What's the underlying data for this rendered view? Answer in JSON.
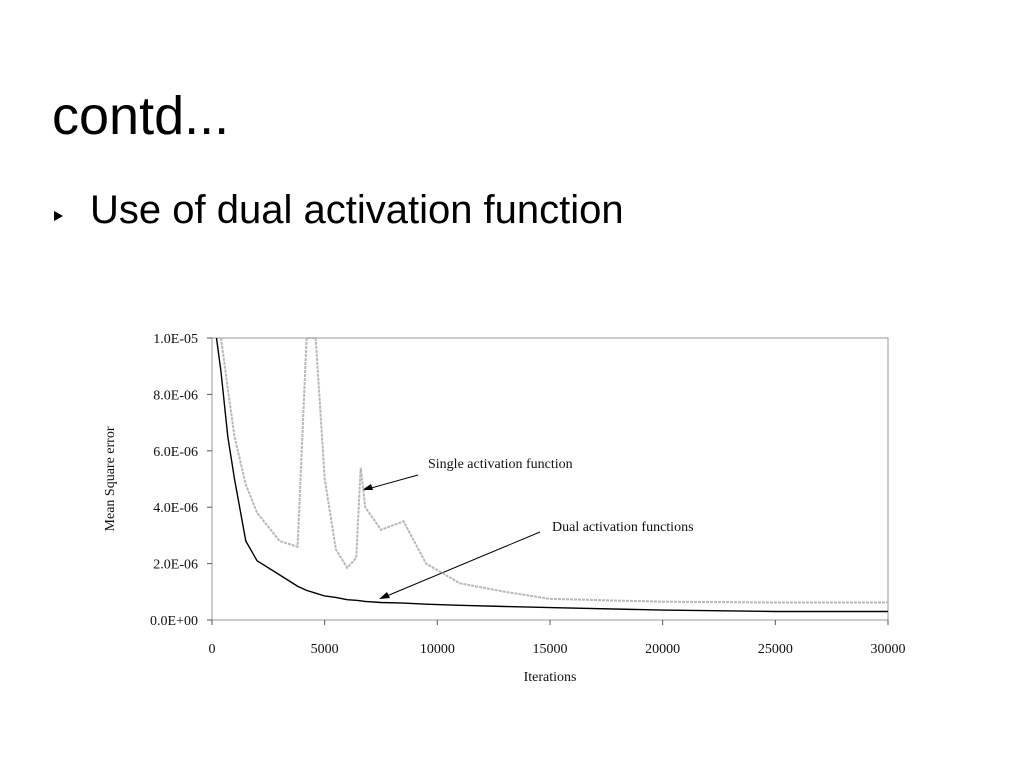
{
  "slide_title": "contd...",
  "bullets": [
    "Use of dual activation function"
  ],
  "chart_data": {
    "type": "line",
    "xlabel": "Iterations",
    "ylabel": "Mean Square error",
    "xlim": [
      0,
      30000
    ],
    "ylim": [
      0,
      1e-05
    ],
    "xticks": [
      0,
      5000,
      10000,
      15000,
      20000,
      25000,
      30000
    ],
    "yticks": [
      {
        "value": 0,
        "label": "0.0E+00"
      },
      {
        "value": 2e-06,
        "label": "2.0E-06"
      },
      {
        "value": 4e-06,
        "label": "4.0E-06"
      },
      {
        "value": 6e-06,
        "label": "6.0E-06"
      },
      {
        "value": 8e-06,
        "label": "8.0E-06"
      },
      {
        "value": 1e-05,
        "label": "1.0E-05"
      }
    ],
    "x": [
      200,
      400,
      700,
      1000,
      1500,
      2000,
      3000,
      3800,
      4200,
      4600,
      5000,
      5500,
      6000,
      6400,
      6600,
      6800,
      7500,
      8500,
      9500,
      11000,
      13000,
      15000,
      20000,
      25000,
      30000
    ],
    "series": [
      {
        "name": "Dual activation functions",
        "color": "#000000",
        "values": [
          1e-05,
          8.8e-06,
          6.5e-06,
          5e-06,
          2.8e-06,
          2.1e-06,
          1.6e-06,
          1.2e-06,
          1.05e-06,
          9.5e-07,
          8.5e-07,
          8e-07,
          7.2e-07,
          7e-07,
          6.8e-07,
          6.6e-07,
          6.2e-07,
          6e-07,
          5.6e-07,
          5.2e-07,
          4.8e-07,
          4.4e-07,
          3.5e-07,
          3e-07,
          3e-07
        ]
      },
      {
        "name": "Single activation function",
        "color": "#b8b8b8",
        "values": [
          null,
          1e-05,
          8.2e-06,
          6.5e-06,
          4.8e-06,
          3.8e-06,
          2.8e-06,
          2.6e-06,
          1e-05,
          1e-05,
          5e-06,
          2.5e-06,
          1.85e-06,
          2.2e-06,
          5.4e-06,
          4e-06,
          3.2e-06,
          3.5e-06,
          2e-06,
          1.3e-06,
          1e-06,
          7.5e-07,
          6.5e-07,
          6.2e-07,
          6.2e-07
        ]
      }
    ]
  }
}
